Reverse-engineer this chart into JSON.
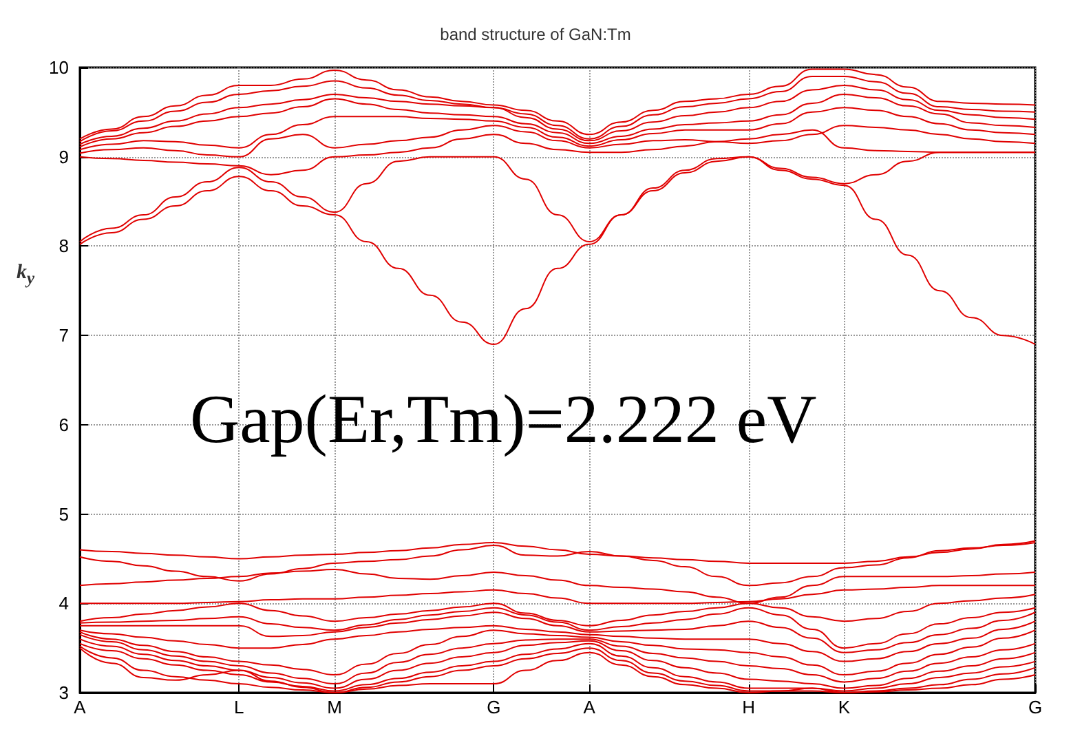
{
  "chart_data": {
    "type": "line",
    "title": "band structure of GaN:Tm",
    "ylabel": "k$_{y}$",
    "annotations": [
      "Gap(Er,Tm)=2.222 eV"
    ],
    "categories": [
      "A",
      null,
      null,
      null,
      null,
      "L",
      null,
      null,
      "M",
      null,
      null,
      null,
      null,
      "G",
      null,
      null,
      "A",
      null,
      null,
      null,
      null,
      "H",
      null,
      null,
      "K",
      null,
      null,
      null,
      null,
      null,
      "G"
    ],
    "ylim": [
      3,
      10
    ],
    "yticks": [
      3,
      4,
      5,
      6,
      7,
      8,
      9,
      10
    ],
    "grid": true,
    "line_style": "solid",
    "series": [
      {
        "color": "#e00000",
        "values": [
          8.02,
          8.15,
          8.3,
          8.45,
          8.62,
          8.78,
          8.62,
          8.45,
          8.35,
          8.05,
          7.75,
          7.45,
          7.15,
          6.9,
          7.3,
          7.75,
          8.02,
          8.35,
          8.65,
          8.85,
          8.98,
          9.0,
          8.85,
          8.75,
          8.68,
          8.3,
          7.9,
          7.5,
          7.2,
          7.0,
          6.9
        ]
      },
      {
        "color": "#e00000",
        "values": [
          8.05,
          8.2,
          8.35,
          8.55,
          8.72,
          8.88,
          8.72,
          8.55,
          8.38,
          8.7,
          8.95,
          9.0,
          9.0,
          9.0,
          8.75,
          8.35,
          8.05,
          8.35,
          8.62,
          8.82,
          8.95,
          9.0,
          8.87,
          8.77,
          8.7,
          8.8,
          8.95,
          9.05,
          9.05,
          9.05,
          9.05
        ]
      },
      {
        "color": "#e00000",
        "values": [
          9.0,
          8.98,
          8.96,
          8.94,
          8.92,
          8.9,
          8.8,
          8.85,
          9.0,
          9.02,
          9.05,
          9.1,
          9.2,
          9.25,
          9.15,
          9.08,
          9.05,
          9.05,
          9.08,
          9.12,
          9.17,
          9.2,
          9.25,
          9.3,
          9.1,
          9.07,
          9.06,
          9.05,
          9.05,
          9.05,
          9.05
        ]
      },
      {
        "color": "#e00000",
        "values": [
          9.04,
          9.08,
          9.1,
          9.07,
          9.02,
          9.0,
          9.2,
          9.25,
          9.1,
          9.14,
          9.18,
          9.22,
          9.3,
          9.35,
          9.28,
          9.18,
          9.1,
          9.14,
          9.18,
          9.19,
          9.17,
          9.15,
          9.18,
          9.25,
          9.35,
          9.33,
          9.3,
          9.25,
          9.2,
          9.17,
          9.15
        ]
      },
      {
        "color": "#e00000",
        "values": [
          9.08,
          9.14,
          9.18,
          9.17,
          9.13,
          9.1,
          9.25,
          9.36,
          9.45,
          9.45,
          9.45,
          9.43,
          9.42,
          9.4,
          9.33,
          9.22,
          9.12,
          9.19,
          9.26,
          9.3,
          9.3,
          9.3,
          9.37,
          9.5,
          9.55,
          9.52,
          9.45,
          9.37,
          9.3,
          9.27,
          9.25
        ]
      },
      {
        "color": "#e00000",
        "values": [
          9.11,
          9.2,
          9.27,
          9.34,
          9.4,
          9.45,
          9.49,
          9.56,
          9.65,
          9.59,
          9.53,
          9.49,
          9.47,
          9.45,
          9.37,
          9.27,
          9.15,
          9.23,
          9.31,
          9.36,
          9.38,
          9.4,
          9.47,
          9.6,
          9.7,
          9.66,
          9.57,
          9.48,
          9.38,
          9.35,
          9.33
        ]
      },
      {
        "color": "#e00000",
        "values": [
          9.14,
          9.23,
          9.32,
          9.4,
          9.48,
          9.55,
          9.59,
          9.64,
          9.7,
          9.66,
          9.62,
          9.59,
          9.57,
          9.55,
          9.44,
          9.31,
          9.18,
          9.29,
          9.39,
          9.46,
          9.5,
          9.55,
          9.62,
          9.75,
          9.8,
          9.75,
          9.64,
          9.52,
          9.47,
          9.44,
          9.42
        ]
      },
      {
        "color": "#e00000",
        "values": [
          9.17,
          9.29,
          9.4,
          9.51,
          9.61,
          9.7,
          9.74,
          9.79,
          9.85,
          9.77,
          9.69,
          9.63,
          9.59,
          9.55,
          9.48,
          9.35,
          9.2,
          9.34,
          9.47,
          9.56,
          9.6,
          9.65,
          9.73,
          9.9,
          9.9,
          9.84,
          9.71,
          9.56,
          9.53,
          9.51,
          9.5
        ]
      },
      {
        "color": "#e00000",
        "values": [
          9.2,
          9.31,
          9.45,
          9.57,
          9.69,
          9.8,
          9.8,
          9.87,
          9.97,
          9.86,
          9.75,
          9.67,
          9.62,
          9.58,
          9.52,
          9.4,
          9.25,
          9.39,
          9.52,
          9.62,
          9.65,
          9.7,
          9.79,
          9.98,
          9.98,
          9.92,
          9.78,
          9.62,
          9.6,
          9.59,
          9.58
        ]
      },
      {
        "color": "#e00000",
        "values": [
          4.6,
          4.58,
          4.56,
          4.54,
          4.52,
          4.5,
          4.52,
          4.54,
          4.55,
          4.57,
          4.59,
          4.62,
          4.66,
          4.68,
          4.64,
          4.6,
          4.55,
          4.53,
          4.51,
          4.49,
          4.47,
          4.45,
          4.45,
          4.45,
          4.45,
          4.47,
          4.52,
          4.57,
          4.61,
          4.66,
          4.7
        ]
      },
      {
        "color": "#e00000",
        "values": [
          4.52,
          4.47,
          4.42,
          4.36,
          4.3,
          4.25,
          4.33,
          4.39,
          4.45,
          4.47,
          4.49,
          4.53,
          4.6,
          4.65,
          4.54,
          4.53,
          4.58,
          4.53,
          4.48,
          4.41,
          4.3,
          4.2,
          4.23,
          4.3,
          4.4,
          4.43,
          4.51,
          4.59,
          4.62,
          4.65,
          4.68
        ]
      },
      {
        "color": "#e00000",
        "values": [
          4.2,
          4.22,
          4.24,
          4.26,
          4.28,
          4.3,
          4.34,
          4.36,
          4.38,
          4.33,
          4.28,
          4.27,
          4.31,
          4.35,
          4.31,
          4.26,
          4.2,
          4.18,
          4.16,
          4.13,
          4.07,
          4.0,
          4.07,
          4.2,
          4.3,
          4.3,
          4.3,
          4.3,
          4.31,
          4.33,
          4.35
        ]
      },
      {
        "color": "#e00000",
        "values": [
          4.0,
          4.0,
          4.0,
          4.0,
          4.01,
          4.02,
          4.04,
          4.05,
          4.05,
          4.07,
          4.09,
          4.11,
          4.13,
          4.15,
          4.11,
          4.06,
          4.0,
          4.0,
          4.0,
          4.0,
          4.01,
          4.02,
          4.05,
          4.1,
          4.15,
          4.16,
          4.18,
          4.2,
          4.2,
          4.2,
          4.2
        ]
      },
      {
        "color": "#e00000",
        "values": [
          3.8,
          3.84,
          3.88,
          3.92,
          3.96,
          4.0,
          3.92,
          3.86,
          3.8,
          3.84,
          3.88,
          3.92,
          3.96,
          4.0,
          3.89,
          3.81,
          3.75,
          3.81,
          3.87,
          3.91,
          3.95,
          4.0,
          3.95,
          3.85,
          3.8,
          3.83,
          3.91,
          4.0,
          4.03,
          4.06,
          4.1
        ]
      },
      {
        "color": "#e00000",
        "values": [
          3.78,
          3.79,
          3.8,
          3.81,
          3.83,
          3.85,
          3.77,
          3.73,
          3.7,
          3.76,
          3.82,
          3.87,
          3.91,
          3.95,
          3.87,
          3.79,
          3.7,
          3.74,
          3.78,
          3.82,
          3.88,
          3.95,
          3.87,
          3.71,
          3.5,
          3.55,
          3.66,
          3.77,
          3.84,
          3.9,
          3.95
        ]
      },
      {
        "color": "#e00000",
        "values": [
          3.75,
          3.75,
          3.75,
          3.75,
          3.75,
          3.75,
          3.63,
          3.64,
          3.68,
          3.73,
          3.78,
          3.82,
          3.86,
          3.9,
          3.83,
          3.75,
          3.68,
          3.69,
          3.7,
          3.71,
          3.75,
          3.8,
          3.73,
          3.61,
          3.45,
          3.48,
          3.56,
          3.65,
          3.72,
          3.81,
          3.9
        ]
      },
      {
        "color": "#e00000",
        "values": [
          3.7,
          3.66,
          3.62,
          3.58,
          3.54,
          3.5,
          3.5,
          3.54,
          3.6,
          3.64,
          3.68,
          3.71,
          3.73,
          3.75,
          3.71,
          3.68,
          3.65,
          3.63,
          3.61,
          3.6,
          3.6,
          3.6,
          3.55,
          3.46,
          3.35,
          3.38,
          3.46,
          3.55,
          3.61,
          3.71,
          3.8
        ]
      },
      {
        "color": "#e00000",
        "values": [
          3.68,
          3.6,
          3.53,
          3.46,
          3.4,
          3.35,
          3.31,
          3.26,
          3.2,
          3.32,
          3.44,
          3.54,
          3.63,
          3.7,
          3.66,
          3.64,
          3.62,
          3.57,
          3.53,
          3.49,
          3.48,
          3.45,
          3.4,
          3.31,
          3.2,
          3.24,
          3.33,
          3.43,
          3.51,
          3.61,
          3.7
        ]
      },
      {
        "color": "#e00000",
        "values": [
          3.65,
          3.57,
          3.48,
          3.41,
          3.35,
          3.3,
          3.22,
          3.16,
          3.1,
          3.22,
          3.34,
          3.43,
          3.5,
          3.55,
          3.59,
          3.6,
          3.6,
          3.52,
          3.44,
          3.39,
          3.35,
          3.3,
          3.27,
          3.2,
          3.12,
          3.16,
          3.24,
          3.33,
          3.4,
          3.48,
          3.55
        ]
      },
      {
        "color": "#e00000",
        "values": [
          3.6,
          3.52,
          3.43,
          3.36,
          3.3,
          3.25,
          3.17,
          3.11,
          3.05,
          3.15,
          3.25,
          3.33,
          3.4,
          3.45,
          3.53,
          3.56,
          3.58,
          3.47,
          3.36,
          3.28,
          3.22,
          3.15,
          3.13,
          3.1,
          3.05,
          3.08,
          3.16,
          3.24,
          3.3,
          3.38,
          3.45
        ]
      },
      {
        "color": "#e00000",
        "values": [
          3.55,
          3.47,
          3.38,
          3.31,
          3.25,
          3.2,
          3.12,
          3.07,
          3.02,
          3.09,
          3.16,
          3.23,
          3.3,
          3.35,
          3.43,
          3.49,
          3.55,
          3.41,
          3.28,
          3.18,
          3.12,
          3.05,
          3.05,
          3.05,
          3.02,
          3.05,
          3.1,
          3.17,
          3.22,
          3.29,
          3.35
        ]
      },
      {
        "color": "#e00000",
        "values": [
          3.52,
          3.39,
          3.25,
          3.18,
          3.14,
          3.1,
          3.06,
          3.03,
          3.0,
          3.06,
          3.12,
          3.18,
          3.25,
          3.3,
          3.38,
          3.44,
          3.5,
          3.36,
          3.22,
          3.13,
          3.08,
          3.02,
          3.02,
          3.02,
          3.0,
          3.02,
          3.05,
          3.09,
          3.15,
          3.21,
          3.28
        ]
      },
      {
        "color": "#e00000",
        "values": [
          3.5,
          3.33,
          3.17,
          3.14,
          3.2,
          3.25,
          3.13,
          3.06,
          3.0,
          3.04,
          3.08,
          3.1,
          3.1,
          3.1,
          3.25,
          3.36,
          3.45,
          3.31,
          3.18,
          3.09,
          3.05,
          3.0,
          3.02,
          3.05,
          3.0,
          3.01,
          3.03,
          3.05,
          3.09,
          3.15,
          3.2
        ]
      }
    ]
  }
}
